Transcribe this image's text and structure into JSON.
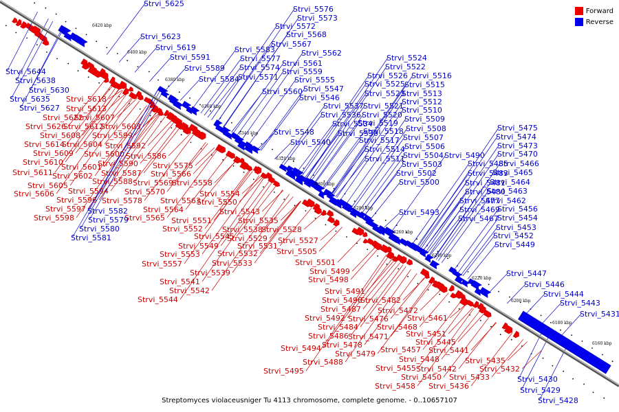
{
  "legend": {
    "forward_label": "Forward",
    "reverse_label": "Reverse",
    "forward_color": "#ee0000",
    "reverse_color": "#0000ee"
  },
  "caption": "Streptomyces violaceusniger Tu 4113 chromosome, complete genome. - 0..10657107",
  "coordinate_labels": [
    "6420 kbp",
    "6400 kbp",
    "6380 kbp",
    "6360 kbp",
    "6340 kbp",
    "6320 kbp",
    "6300 kbp",
    "6280 kbp",
    "6260 kbp",
    "6240 kbp",
    "6220 kbp",
    "6200 kbp",
    "6180 kbp",
    "6160 kbp"
  ],
  "forward_genes": [
    "Strvi_5618",
    "Strvi_5613",
    "Strvi_5622",
    "Strvi_5607",
    "Strvi_5626",
    "Strvi_5612",
    "Strvi_5603",
    "Strvi_5608",
    "Strvi_5599",
    "Strvi_5614",
    "Strvi_5604",
    "Strvi_5592",
    "Strvi_5609",
    "Strvi_5600",
    "Strvi_5586",
    "Strvi_5610",
    "Strvi_5601",
    "Strvi_5590",
    "Strvi_5575",
    "Strvi_5611",
    "Strvi_5602",
    "Strvi_5587",
    "Strvi_5566",
    "Strvi_5588",
    "Strvi_5569",
    "Strvi_5558",
    "Strvi_5605",
    "Strvi_5594",
    "Strvi_5570",
    "Strvi_5606",
    "Strvi_5578",
    "Strvi_5563",
    "Strvi_5554",
    "Strvi_5596",
    "Strvi_5550",
    "Strvi_5597",
    "Strvi_5564",
    "Strvi_5543",
    "Strvi_5598",
    "Strvi_5565",
    "Strvi_5535",
    "Strvi_5551",
    "Strvi_5538",
    "Strvi_5528",
    "Strvi_5552",
    "Strvi_5529",
    "Strvi_5545",
    "Strvi_5527",
    "Strvi_5531",
    "Strvi_5549",
    "Strvi_5532",
    "Strvi_5505",
    "Strvi_5553",
    "Strvi_5557",
    "Strvi_5533",
    "Strvi_5501",
    "Strvi_5539",
    "Strvi_5499",
    "Strvi_5541",
    "Strvi_5498",
    "Strvi_5542",
    "Strvi_5544",
    "Strvi_5491",
    "Strvi_5496",
    "Strvi_5482",
    "Strvi_5487",
    "Strvi_5472",
    "Strvi_5492",
    "Strvi_5476",
    "Strvi_5461",
    "Strvi_5484",
    "Strvi_5468",
    "Strvi_5486",
    "Strvi_5471",
    "Strvi_5451",
    "Strvi_5478",
    "Strvi_5445",
    "Strvi_5494",
    "Strvi_5457",
    "Strvi_5441",
    "Strvi_5479",
    "Strvi_5448",
    "Strvi_5488",
    "Strvi_5435",
    "Strvi_5442",
    "Strvi_5495",
    "Strvi_5455",
    "Strvi_5432",
    "Strvi_5450",
    "Strvi_5433",
    "Strvi_5458",
    "Strvi_5436"
  ],
  "reverse_genes": [
    "Strvi_5625",
    "Strvi_5576",
    "Strvi_5573",
    "Strvi_5572",
    "Strvi_5623",
    "Strvi_5568",
    "Strvi_5619",
    "Strvi_5567",
    "Strvi_5583",
    "Strvi_5562",
    "Strvi_5577",
    "Strvi_5591",
    "Strvi_5561",
    "Strvi_5574",
    "Strvi_5589",
    "Strvi_5559",
    "Strvi_5644",
    "Strvi_5584",
    "Strvi_5571",
    "Strvi_5555",
    "Strvi_5638",
    "Strvi_5630",
    "Strvi_5560",
    "Strvi_5547",
    "Strvi_5635",
    "Strvi_5546",
    "Strvi_5627",
    "Strvi_5537",
    "Strvi_5536",
    "Strvi_5534",
    "Strvi_5548",
    "Strvi_5530",
    "Strvi_5540",
    "Strvi_5524",
    "Strvi_5522",
    "Strvi_5526",
    "Strvi_5516",
    "Strvi_5525",
    "Strvi_5515",
    "Strvi_5523",
    "Strvi_5513",
    "Strvi_5512",
    "Strvi_5521",
    "Strvi_5510",
    "Strvi_5520",
    "Strvi_5509",
    "Strvi_5519",
    "Strvi_5508",
    "Strvi_5518",
    "Strvi_5507",
    "Strvi_5517",
    "Strvi_5506",
    "Strvi_5514",
    "Strvi_5504",
    "Strvi_5511",
    "Strvi_5503",
    "Strvi_5502",
    "Strvi_5500",
    "Strvi_5493",
    "Strvi_5582",
    "Strvi_5579",
    "Strvi_5580",
    "Strvi_5581",
    "Strvi_5475",
    "Strvi_5474",
    "Strvi_5473",
    "Strvi_5470",
    "Strvi_5490",
    "Strvi_5466",
    "Strvi_5485",
    "Strvi_5465",
    "Strvi_5483",
    "Strvi_5464",
    "Strvi_5481",
    "Strvi_5463",
    "Strvi_5480",
    "Strvi_5462",
    "Strvi_5477",
    "Strvi_5456",
    "Strvi_5469",
    "Strvi_5454",
    "Strvi_5467",
    "Strvi_5453",
    "Strvi_5452",
    "Strvi_5449",
    "Strvi_5447",
    "Strvi_5446",
    "Strvi_5444",
    "Strvi_5443",
    "Strvi_5431",
    "Strvi_5430",
    "Strvi_5429",
    "Strvi_5428"
  ]
}
